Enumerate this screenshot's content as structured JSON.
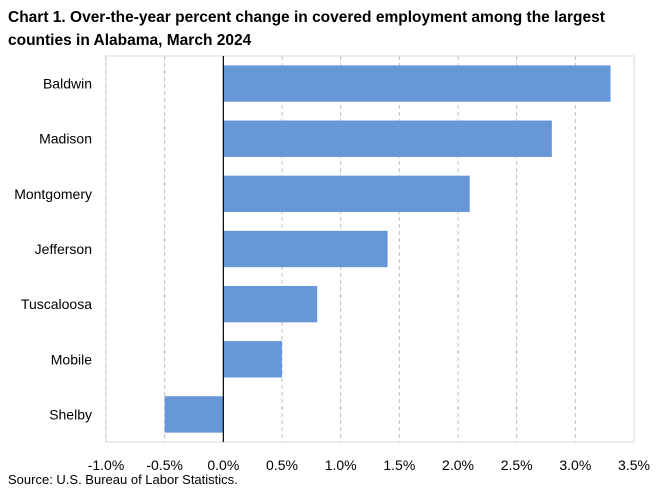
{
  "title": "Chart 1. Over-the-year percent change in covered employment among the largest counties in Alabama, March 2024",
  "source": "Source: U.S. Bureau of Labor Statistics.",
  "chart_data": {
    "type": "bar",
    "orientation": "horizontal",
    "title": "Chart 1. Over-the-year percent change in covered employment among the largest counties in Alabama, March 2024",
    "categories": [
      "Baldwin",
      "Madison",
      "Montgomery",
      "Jefferson",
      "Tuscaloosa",
      "Mobile",
      "Shelby"
    ],
    "values": [
      3.3,
      2.8,
      2.1,
      1.4,
      0.8,
      0.5,
      -0.5
    ],
    "xlim": [
      -1.0,
      3.5
    ],
    "xticks": [
      -1.0,
      -0.5,
      0.0,
      0.5,
      1.0,
      1.5,
      2.0,
      2.5,
      3.0,
      3.5
    ],
    "tick_labels": [
      "-1.0%",
      "-0.5%",
      "0.0%",
      "0.5%",
      "1.0%",
      "1.5%",
      "2.0%",
      "2.5%",
      "3.0%",
      "3.5%"
    ],
    "grid": "vertical dashed",
    "bar_color": "#6897d8",
    "legend": "none"
  }
}
